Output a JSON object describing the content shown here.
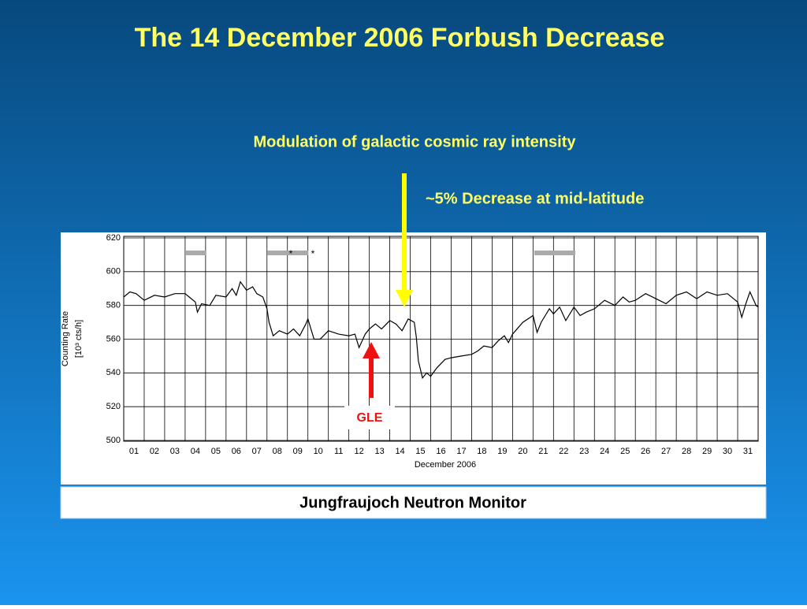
{
  "slide": {
    "title": "The 14 December 2006 Forbush Decrease",
    "subtitle": "Modulation of galactic cosmic ray intensity",
    "caption": "Jungfraujoch Neutron Monitor"
  },
  "chart_data": {
    "type": "line",
    "xlabel": "December 2006",
    "ylabel": "Counting Rate",
    "yunit": "[10³ cts/h]",
    "annotations": {
      "decrease": "~5% Decrease at mid-latitude",
      "gle": "GLE",
      "star1": "*",
      "star2": "*"
    },
    "color": "#000000",
    "grid": true,
    "xlim": [
      0,
      31
    ],
    "ylim": [
      500,
      620
    ],
    "yticks": [
      500,
      520,
      540,
      560,
      580,
      600,
      620
    ],
    "xticks": [
      {
        "value": 0.5,
        "label": "01"
      },
      {
        "value": 1.5,
        "label": "02"
      },
      {
        "value": 2.5,
        "label": "03"
      },
      {
        "value": 3.5,
        "label": "04"
      },
      {
        "value": 4.5,
        "label": "05"
      },
      {
        "value": 5.5,
        "label": "06"
      },
      {
        "value": 6.5,
        "label": "07"
      },
      {
        "value": 7.5,
        "label": "08"
      },
      {
        "value": 8.5,
        "label": "09"
      },
      {
        "value": 9.5,
        "label": "10"
      },
      {
        "value": 10.5,
        "label": "11"
      },
      {
        "value": 11.5,
        "label": "12"
      },
      {
        "value": 12.5,
        "label": "13"
      },
      {
        "value": 13.5,
        "label": "14"
      },
      {
        "value": 14.5,
        "label": "15"
      },
      {
        "value": 15.5,
        "label": "16"
      },
      {
        "value": 16.5,
        "label": "17"
      },
      {
        "value": 17.5,
        "label": "18"
      },
      {
        "value": 18.5,
        "label": "19"
      },
      {
        "value": 19.5,
        "label": "20"
      },
      {
        "value": 20.5,
        "label": "21"
      },
      {
        "value": 21.5,
        "label": "22"
      },
      {
        "value": 22.5,
        "label": "23"
      },
      {
        "value": 23.5,
        "label": "24"
      },
      {
        "value": 24.5,
        "label": "25"
      },
      {
        "value": 25.5,
        "label": "26"
      },
      {
        "value": 26.5,
        "label": "27"
      },
      {
        "value": 27.5,
        "label": "28"
      },
      {
        "value": 28.5,
        "label": "29"
      },
      {
        "value": 29.5,
        "label": "30"
      },
      {
        "value": 30.5,
        "label": "31"
      }
    ],
    "x": [
      0.0,
      0.3,
      0.6,
      1.0,
      1.5,
      2.0,
      2.5,
      3.0,
      3.2,
      3.5,
      3.6,
      3.8,
      4.2,
      4.5,
      5.0,
      5.3,
      5.5,
      5.7,
      6.0,
      6.3,
      6.5,
      6.8,
      7.0,
      7.1,
      7.3,
      7.6,
      8.0,
      8.3,
      8.6,
      8.9,
      9.0,
      9.3,
      9.6,
      10.0,
      10.5,
      11.0,
      11.3,
      11.5,
      11.8,
      12.0,
      12.3,
      12.6,
      13.0,
      13.3,
      13.6,
      13.9,
      14.2,
      14.3,
      14.4,
      14.6,
      14.8,
      15.0,
      15.3,
      15.7,
      16.0,
      16.5,
      17.0,
      17.3,
      17.6,
      18.0,
      18.3,
      18.6,
      18.8,
      19.0,
      19.5,
      20.0,
      20.2,
      20.4,
      20.8,
      21.0,
      21.3,
      21.6,
      22.0,
      22.3,
      22.6,
      23.0,
      23.5,
      24.0,
      24.4,
      24.7,
      25.0,
      25.5,
      26.0,
      26.5,
      27.0,
      27.5,
      28.0,
      28.5,
      29.0,
      29.5,
      30.0,
      30.2,
      30.4,
      30.6,
      30.9,
      31.0
    ],
    "values": [
      585,
      588,
      587,
      583,
      586,
      585,
      587,
      587,
      585,
      582,
      576,
      581,
      580,
      586,
      585,
      590,
      586,
      594,
      589,
      591,
      587,
      585,
      578,
      570,
      562,
      565,
      563,
      566,
      562,
      569,
      572,
      560,
      560,
      565,
      563,
      562,
      563,
      555,
      563,
      566,
      569,
      566,
      571,
      569,
      565,
      572,
      570,
      561,
      547,
      537,
      540,
      538,
      543,
      548,
      549,
      550,
      551,
      553,
      556,
      555,
      559,
      562,
      558,
      563,
      570,
      574,
      564,
      570,
      578,
      575,
      579,
      571,
      579,
      574,
      576,
      578,
      583,
      580,
      585,
      582,
      583,
      587,
      584,
      581,
      586,
      588,
      584,
      588,
      586,
      587,
      582,
      573,
      581,
      588,
      580,
      579
    ]
  }
}
